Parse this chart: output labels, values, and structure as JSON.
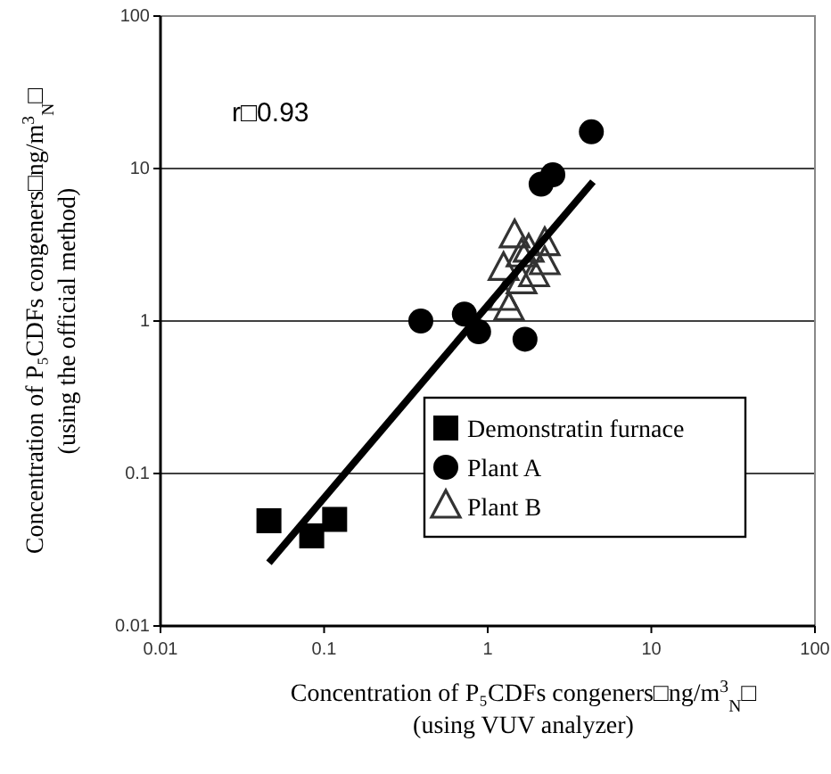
{
  "chart_data": {
    "type": "scatter",
    "xlabel": "Concentration of P₅CDFs congeners□ng/m$^{3}$$_{N}$□\n(using VUV analyzer)",
    "ylabel": "Concentration of P₅CDFs congeners□ng/m$^{3}$$_{N}$□\n(using the official method)",
    "log": "xy",
    "xlim": [
      0.01,
      100
    ],
    "ylim": [
      0.01,
      100
    ],
    "xticks": [
      0.01,
      0.1,
      1,
      10,
      100
    ],
    "yticks": [
      0.01,
      0.1,
      1,
      10,
      100
    ],
    "grid": "y",
    "legend": "bottom right",
    "annotations": [
      {
        "text": "r□0.93"
      }
    ],
    "series": [
      {
        "name": "Demonstratin furnace",
        "color": "#000000",
        "marker": "square",
        "x": [
          0.046,
          0.084,
          0.116
        ],
        "values": [
          0.049,
          0.039,
          0.05
        ]
      },
      {
        "name": "Plant A",
        "color": "#000000",
        "marker": "circle",
        "x": [
          0.39,
          0.72,
          0.88,
          1.69,
          2.12,
          2.5,
          4.3
        ],
        "values": [
          1.0,
          1.11,
          0.85,
          0.76,
          7.9,
          9.1,
          17.4
        ]
      },
      {
        "name": "Plant B",
        "color": "#333333",
        "marker": "triangle",
        "x": [
          1.46,
          1.25,
          1.35,
          1.61,
          1.61,
          1.92,
          2.23,
          2.23,
          1.78,
          1.25
        ],
        "values": [
          3.6,
          2.2,
          1.2,
          2.7,
          1.8,
          2.0,
          2.4,
          3.2,
          2.9,
          1.4
        ]
      },
      {
        "type": "line",
        "color": "#000000",
        "x": [
          0.046,
          4.4
        ],
        "values": [
          0.026,
          8.2
        ]
      }
    ]
  }
}
